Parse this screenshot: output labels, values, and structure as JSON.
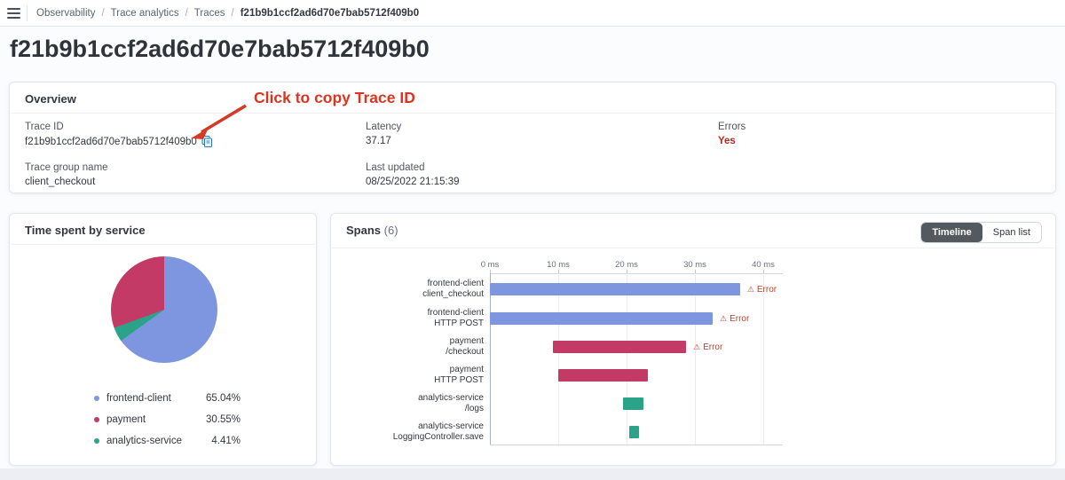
{
  "topbar": {
    "breadcrumbs": [
      "Observability",
      "Trace analytics",
      "Traces",
      "f21b9b1ccf2ad6d70e7bab5712f409b0"
    ]
  },
  "page_title": "f21b9b1ccf2ad6d70e7bab5712f409b0",
  "annotation": {
    "text": "Click to copy Trace ID",
    "color": "#dd3420"
  },
  "overview": {
    "title": "Overview",
    "fields": [
      {
        "label": "Trace ID",
        "value": "f21b9b1ccf2ad6d70e7bab5712f409b0"
      },
      {
        "label": "Latency",
        "value": "37.17"
      },
      {
        "label": "Errors",
        "value": "Yes",
        "value_color": "#bd271e"
      },
      {
        "label": "Trace group name",
        "value": "client_checkout"
      },
      {
        "label": "Last updated",
        "value": "08/25/2022 21:15:39"
      }
    ]
  },
  "spans_header": {
    "title": "Spans",
    "count": "(6)",
    "view_buttons": [
      "Timeline",
      "Span list"
    ],
    "selected_view": "Timeline"
  },
  "chart_data": [
    {
      "type": "pie",
      "title": "Time spent by service",
      "legend_position": "bottom",
      "legend": [
        {
          "label": "frontend-client",
          "value": 65.04,
          "display": "65.04%",
          "color": "#7e96e0"
        },
        {
          "label": "payment",
          "value": 30.55,
          "display": "30.55%",
          "color": "#c43a67"
        },
        {
          "label": "analytics-service",
          "value": 4.41,
          "display": "4.41%",
          "color": "#2aa389"
        }
      ],
      "draw_order_clockwise_from_top": [
        "frontend-client",
        "analytics-service",
        "payment"
      ]
    },
    {
      "type": "gantt",
      "title": "Spans (6)",
      "x_unit": "ms",
      "x_ticks": [
        0,
        10,
        20,
        30,
        40
      ],
      "x_max": 42.8,
      "error_label": "Error",
      "error_color": "#b5452e",
      "rows": [
        {
          "service": "frontend-client",
          "operation": "client_checkout",
          "start_ms": 0,
          "end_ms": 36.6,
          "color": "#7e96e0",
          "error": true
        },
        {
          "service": "frontend-client",
          "operation": "HTTP POST",
          "start_ms": 0,
          "end_ms": 32.6,
          "color": "#7e96e0",
          "error": true
        },
        {
          "service": "payment",
          "operation": "/checkout",
          "start_ms": 9.2,
          "end_ms": 28.7,
          "color": "#c43a67",
          "error": true
        },
        {
          "service": "payment",
          "operation": "HTTP POST",
          "start_ms": 10.0,
          "end_ms": 23.1,
          "color": "#c43a67",
          "error": false
        },
        {
          "service": "analytics-service",
          "operation": "/logs",
          "start_ms": 19.5,
          "end_ms": 22.5,
          "color": "#2aa389",
          "error": false
        },
        {
          "service": "analytics-service",
          "operation": "LoggingController.save",
          "start_ms": 20.4,
          "end_ms": 21.8,
          "color": "#2aa389",
          "error": false
        }
      ]
    }
  ]
}
